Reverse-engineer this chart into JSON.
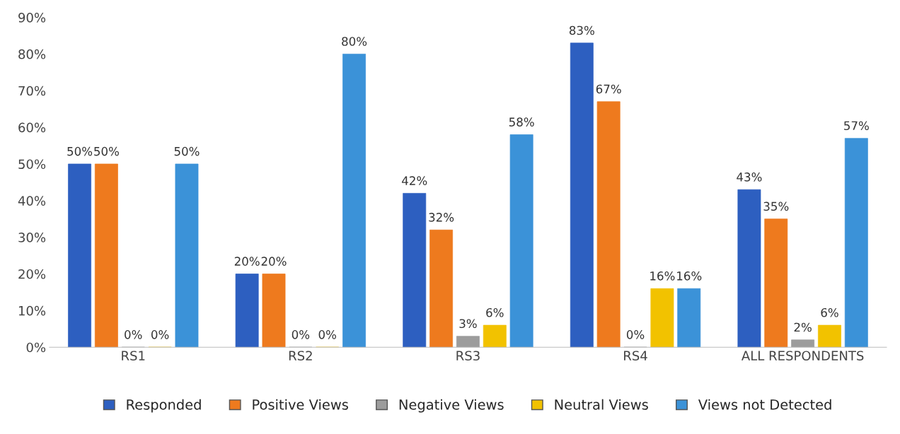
{
  "chart_data": {
    "type": "bar",
    "categories": [
      "RS1",
      "RS2",
      "RS3",
      "RS4",
      "ALL RESPONDENTS"
    ],
    "series": [
      {
        "name": "Responded",
        "color": "#2d5fc0",
        "values": [
          50,
          20,
          42,
          83,
          43
        ],
        "value_labels": [
          "50%",
          "20%",
          "42%",
          "83%",
          "43%"
        ]
      },
      {
        "name": "Positive Views",
        "color": "#ee7a1e",
        "values": [
          50,
          20,
          32,
          67,
          35
        ],
        "value_labels": [
          "50%",
          "20%",
          "32%",
          "67%",
          "35%"
        ]
      },
      {
        "name": "Negative Views",
        "color": "#9c9c9c",
        "values": [
          0,
          0,
          3,
          0,
          2
        ],
        "value_labels": [
          "0%",
          "0%",
          "3%",
          "0%",
          "2%"
        ]
      },
      {
        "name": "Neutral Views",
        "color": "#f2c200",
        "values": [
          0,
          0,
          6,
          16,
          6
        ],
        "value_labels": [
          "0%",
          "0%",
          "6%",
          "16%",
          "6%"
        ]
      },
      {
        "name": "Views not Detected",
        "color": "#3b92d8",
        "values": [
          50,
          80,
          58,
          16,
          57
        ],
        "value_labels": [
          "50%",
          "80%",
          "58%",
          "16%",
          "57%"
        ]
      }
    ],
    "ylim": [
      0,
      90
    ],
    "yticks": [
      {
        "value": 0,
        "label": "0%"
      },
      {
        "value": 10,
        "label": "10%"
      },
      {
        "value": 20,
        "label": "20%"
      },
      {
        "value": 30,
        "label": "30%"
      },
      {
        "value": 40,
        "label": "40%"
      },
      {
        "value": 50,
        "label": "50%"
      },
      {
        "value": 60,
        "label": "60%"
      },
      {
        "value": 70,
        "label": "70%"
      },
      {
        "value": 80,
        "label": "80%"
      },
      {
        "value": 90,
        "label": "90%"
      }
    ],
    "grid": false,
    "legend": "bottom"
  }
}
